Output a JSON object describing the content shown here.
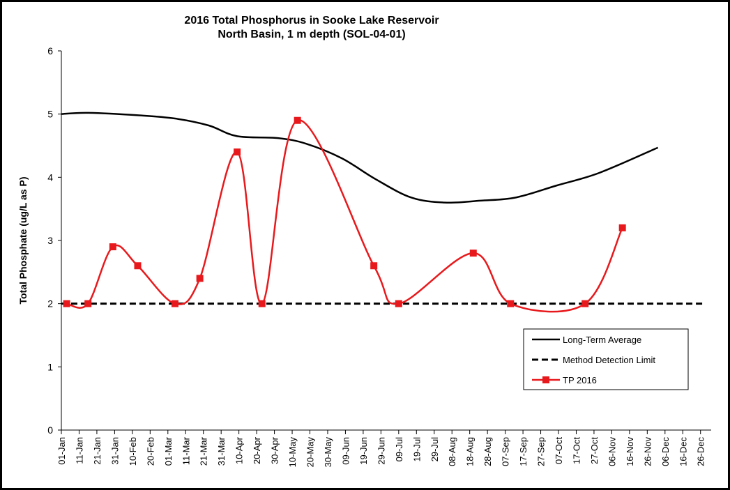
{
  "chart_data": {
    "type": "line",
    "title": "2016 Total Phosphorus in Sooke Lake Reservoir",
    "subtitle": "North Basin, 1 m depth (SOL-04-01)",
    "y_label": "Total Phosphate (ug/L as P)",
    "xlim": [
      0,
      366
    ],
    "ylim": [
      0,
      6
    ],
    "yticks": [
      0,
      1,
      2,
      3,
      4,
      5,
      6
    ],
    "xticks": [
      {
        "value": 0,
        "label": "01-Jan"
      },
      {
        "value": 10,
        "label": "11-Jan"
      },
      {
        "value": 20,
        "label": "21-Jan"
      },
      {
        "value": 30,
        "label": "31-Jan"
      },
      {
        "value": 40,
        "label": "10-Feb"
      },
      {
        "value": 50,
        "label": "20-Feb"
      },
      {
        "value": 60,
        "label": "01-Mar"
      },
      {
        "value": 70,
        "label": "11-Mar"
      },
      {
        "value": 80,
        "label": "21-Mar"
      },
      {
        "value": 90,
        "label": "31-Mar"
      },
      {
        "value": 100,
        "label": "10-Apr"
      },
      {
        "value": 110,
        "label": "20-Apr"
      },
      {
        "value": 120,
        "label": "30-Apr"
      },
      {
        "value": 130,
        "label": "10-May"
      },
      {
        "value": 140,
        "label": "20-May"
      },
      {
        "value": 150,
        "label": "30-May"
      },
      {
        "value": 160,
        "label": "09-Jun"
      },
      {
        "value": 170,
        "label": "19-Jun"
      },
      {
        "value": 180,
        "label": "29-Jun"
      },
      {
        "value": 190,
        "label": "09-Jul"
      },
      {
        "value": 200,
        "label": "19-Jul"
      },
      {
        "value": 210,
        "label": "29-Jul"
      },
      {
        "value": 220,
        "label": "08-Aug"
      },
      {
        "value": 230,
        "label": "18-Aug"
      },
      {
        "value": 240,
        "label": "28-Aug"
      },
      {
        "value": 250,
        "label": "07-Sep"
      },
      {
        "value": 260,
        "label": "17-Sep"
      },
      {
        "value": 270,
        "label": "27-Sep"
      },
      {
        "value": 280,
        "label": "07-Oct"
      },
      {
        "value": 290,
        "label": "17-Oct"
      },
      {
        "value": 300,
        "label": "27-Oct"
      },
      {
        "value": 310,
        "label": "06-Nov"
      },
      {
        "value": 320,
        "label": "16-Nov"
      },
      {
        "value": 330,
        "label": "26-Nov"
      },
      {
        "value": 340,
        "label": "06-Dec"
      },
      {
        "value": 350,
        "label": "16-Dec"
      },
      {
        "value": 360,
        "label": "26-Dec"
      }
    ],
    "legend": "lower-right",
    "series": [
      {
        "name": "Long-Term Average",
        "color": "#000000",
        "dash": false,
        "marker": "none",
        "x": [
          0,
          15,
          44,
          64,
          83,
          99,
          122,
          138,
          158,
          177,
          197,
          216,
          236,
          256,
          279,
          303,
          336
        ],
        "values": [
          5.0,
          5.02,
          4.98,
          4.93,
          4.82,
          4.65,
          4.62,
          4.53,
          4.3,
          3.97,
          3.68,
          3.6,
          3.63,
          3.68,
          3.87,
          4.07,
          4.47
        ]
      },
      {
        "name": "Method Detection Limit",
        "color": "#000000",
        "dash": true,
        "marker": "none",
        "x": [
          0,
          362
        ],
        "values": [
          2,
          2
        ]
      },
      {
        "name": "TP 2016",
        "color": "#e8191c",
        "dash": false,
        "marker": "square",
        "x": [
          3,
          15,
          29,
          43,
          64,
          78,
          99,
          113,
          133,
          176,
          190,
          232,
          253,
          295,
          316
        ],
        "values": [
          2.0,
          2.0,
          2.9,
          2.6,
          2.0,
          2.4,
          4.4,
          2.0,
          4.9,
          2.6,
          2.0,
          2.8,
          2.0,
          2.0,
          3.2
        ]
      }
    ]
  }
}
